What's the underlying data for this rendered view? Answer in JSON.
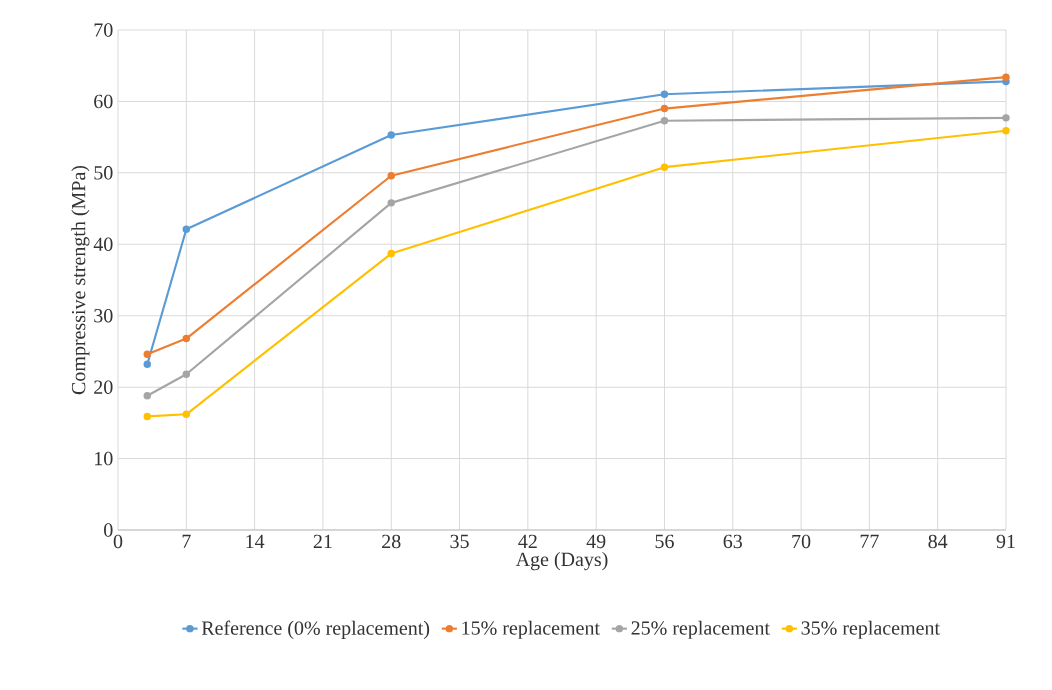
{
  "chart_data": {
    "type": "line",
    "xlabel": "Age (Days)",
    "ylabel": "Compressive  strength (MPa)",
    "x": [
      3,
      7,
      28,
      56,
      91
    ],
    "series": [
      {
        "name": "Reference (0% replacement)",
        "color": "#5b9bd5",
        "values": [
          23.2,
          42.1,
          55.3,
          61.0,
          62.8
        ]
      },
      {
        "name": "15% replacement",
        "color": "#ed7d31",
        "values": [
          24.6,
          26.8,
          49.6,
          59.0,
          63.4
        ]
      },
      {
        "name": "25% replacement",
        "color": "#a5a5a5",
        "values": [
          18.8,
          21.8,
          45.8,
          57.3,
          57.7
        ]
      },
      {
        "name": "35% replacement",
        "color": "#ffc000",
        "values": [
          15.9,
          16.2,
          38.7,
          50.8,
          55.9
        ]
      }
    ],
    "xlim": [
      0,
      91
    ],
    "xticks": [
      0,
      7,
      14,
      21,
      28,
      35,
      42,
      49,
      56,
      63,
      70,
      77,
      84,
      91
    ],
    "ylim": [
      0,
      70
    ],
    "yticks": [
      0,
      10,
      20,
      30,
      40,
      50,
      60,
      70
    ],
    "grid": true,
    "legend": "bottom",
    "marker": "circle",
    "line_style": "solid"
  }
}
